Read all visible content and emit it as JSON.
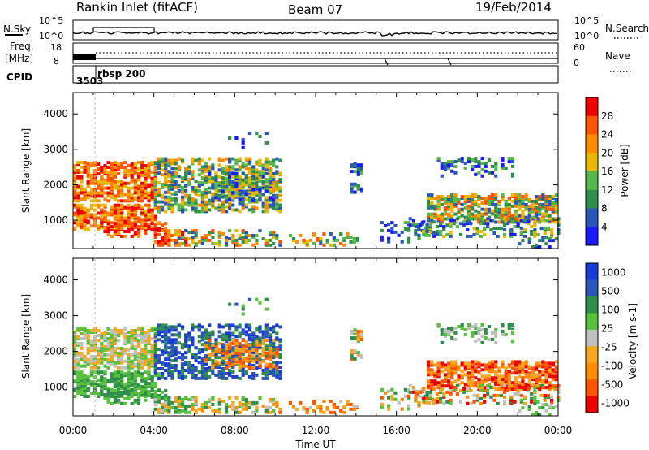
{
  "header": {
    "station": "Rankin Inlet (fitACF)",
    "beam": "Beam 07",
    "date": "19/Feb/2014"
  },
  "top_panels": {
    "nsky_label": "N.Sky",
    "nsky_ticks": [
      "10^5",
      "10^0"
    ],
    "nsearch_label": "N.Search",
    "nsearch_ticks": [
      "10^5",
      "10^0"
    ],
    "freq_label_line1": "Freq.",
    "freq_label_line2": "[MHz]",
    "freq_ticks": [
      "18",
      "8"
    ],
    "nave_label": "Nave",
    "nave_ticks": [
      "60",
      "0"
    ],
    "cpid_label": "CPID",
    "cpid_values": [
      "3503",
      "rbsp 200"
    ]
  },
  "colors": {
    "power_scale": [
      "#1a1aff",
      "#2b56b8",
      "#2f8f4a",
      "#56b84a",
      "#e8b800",
      "#ff8c00",
      "#ff5500",
      "#ee0000"
    ],
    "velocity_scale": [
      "#ee0000",
      "#ff5500",
      "#ff8c00",
      "#f5a623",
      "#c0c0c0",
      "#56c13a",
      "#2f8f4a",
      "#2b56b8",
      "#1a3ad8"
    ]
  },
  "chart_data": [
    {
      "type": "heatmap",
      "panel": "power",
      "ylabel": "Slant Range [km]",
      "ylim": [
        200,
        4600
      ],
      "yticks": [
        "1000",
        "2000",
        "3000",
        "4000"
      ],
      "xlim": [
        "00:00",
        "24:00"
      ],
      "colorbar_label": "Power [dB]",
      "colorbar_ticks": [
        "4",
        "8",
        "12",
        "16",
        "20",
        "24",
        "28"
      ]
    },
    {
      "type": "heatmap",
      "panel": "velocity",
      "ylabel": "Slant Range [km]",
      "ylim": [
        200,
        4600
      ],
      "yticks": [
        "1000",
        "2000",
        "3000",
        "4000"
      ],
      "xlim": [
        "00:00",
        "24:00"
      ],
      "xticks": [
        "00:00",
        "04:00",
        "08:00",
        "12:00",
        "16:00",
        "20:00",
        "00:00"
      ],
      "xlabel": "Time UT",
      "colorbar_label": "Velocity [m s-1]",
      "colorbar_ticks": [
        "1000",
        "500",
        "100",
        "25",
        "-25",
        "-100",
        "-500",
        "-1000"
      ]
    }
  ]
}
